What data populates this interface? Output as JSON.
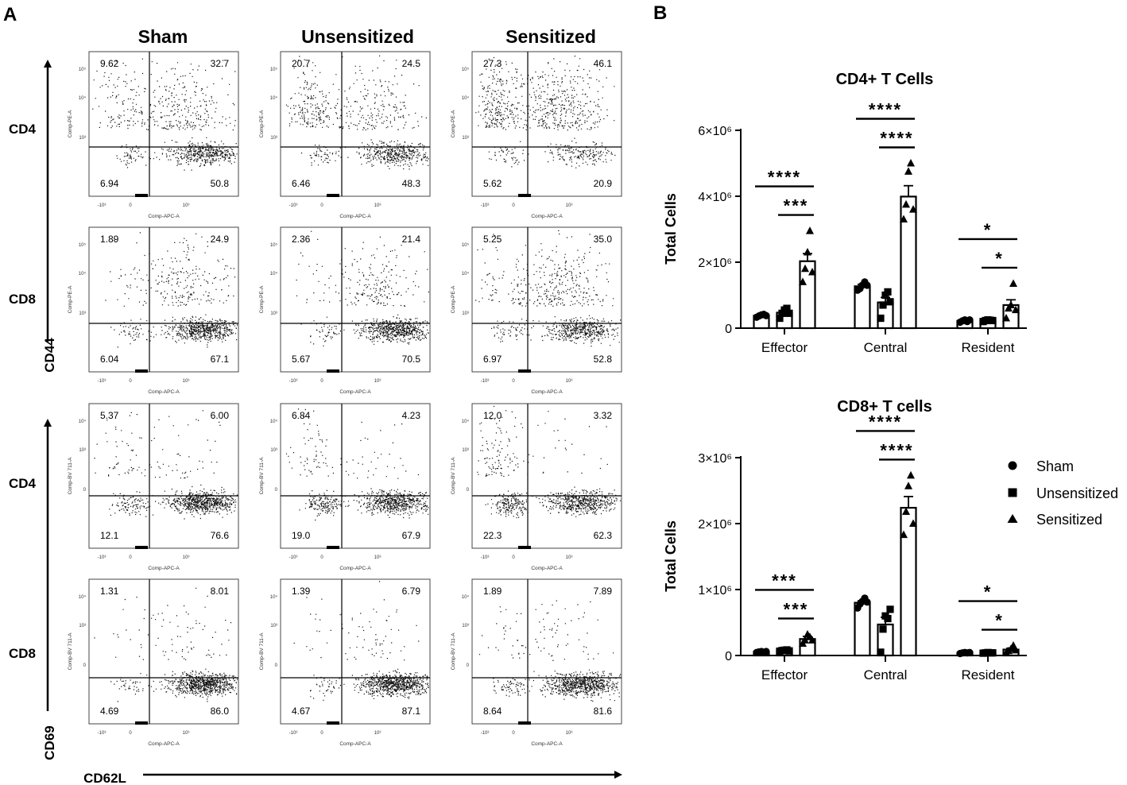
{
  "panel_a": {
    "label": "A",
    "columns": [
      "Sham",
      "Unsensitized",
      "Sensitized"
    ],
    "row_labels": [
      "CD4",
      "CD8",
      "CD4",
      "CD8"
    ],
    "axis_y_top": "CD44",
    "axis_y_bottom": "CD69",
    "axis_x": "CD62L",
    "x_param": "Comp-APC-A",
    "y_params": [
      "Comp-PE-A",
      "Comp-PE-A",
      "Comp-BV 711-A",
      "Comp-BV 711-A"
    ],
    "tick_neg": "-10³",
    "tick_zero": "0",
    "tick_3": "10³",
    "tick_4": "10⁴",
    "tick_5": "10⁵",
    "quadrants": [
      [
        [
          9.62,
          32.7,
          6.94,
          50.8
        ],
        [
          20.7,
          24.5,
          6.46,
          48.3
        ],
        [
          27.3,
          46.1,
          5.62,
          20.9
        ]
      ],
      [
        [
          1.89,
          24.9,
          6.04,
          67.1
        ],
        [
          2.36,
          21.4,
          5.67,
          70.5
        ],
        [
          5.25,
          35.0,
          6.97,
          52.8
        ]
      ],
      [
        [
          5.37,
          6.0,
          12.1,
          76.6
        ],
        [
          6.84,
          4.23,
          19.0,
          67.9
        ],
        [
          12.0,
          3.32,
          22.3,
          62.3
        ]
      ],
      [
        [
          1.31,
          8.01,
          4.69,
          86.0
        ],
        [
          1.39,
          6.79,
          4.67,
          87.1
        ],
        [
          1.89,
          7.89,
          8.64,
          81.6
        ]
      ]
    ],
    "quadrant_labels": [
      [
        [
          "9.62",
          "32.7",
          "6.94",
          "50.8"
        ],
        [
          "20.7",
          "24.5",
          "6.46",
          "48.3"
        ],
        [
          "27.3",
          "46.1",
          "5.62",
          "20.9"
        ]
      ],
      [
        [
          "1.89",
          "24.9",
          "6.04",
          "67.1"
        ],
        [
          "2.36",
          "21.4",
          "5.67",
          "70.5"
        ],
        [
          "5.25",
          "35.0",
          "6.97",
          "52.8"
        ]
      ],
      [
        [
          "5.37",
          "6.00",
          "12.1",
          "76.6"
        ],
        [
          "6.84",
          "4.23",
          "19.0",
          "67.9"
        ],
        [
          "12.0",
          "3.32",
          "22.3",
          "62.3"
        ]
      ],
      [
        [
          "1.31",
          "8.01",
          "4.69",
          "86.0"
        ],
        [
          "1.39",
          "6.79",
          "4.67",
          "87.1"
        ],
        [
          "1.89",
          "7.89",
          "8.64",
          "81.6"
        ]
      ]
    ]
  },
  "panel_b": {
    "label": "B"
  },
  "legend": [
    {
      "name": "Sham",
      "marker": "circle"
    },
    {
      "name": "Unsensitized",
      "marker": "square"
    },
    {
      "name": "Sensitized",
      "marker": "triangle"
    }
  ],
  "chart_data": [
    {
      "type": "bar",
      "title": "CD4+ T Cells",
      "ylabel": "Total Cells",
      "ylim": [
        0,
        6000000
      ],
      "yticks": [
        0,
        2000000,
        4000000,
        6000000
      ],
      "ytick_labels": [
        "0",
        "2×10⁶",
        "4×10⁶",
        "6×10⁶"
      ],
      "categories": [
        "Effector",
        "Central",
        "Resident"
      ],
      "series": [
        {
          "name": "Sham",
          "values": [
            380000,
            1270000,
            220000
          ],
          "error": [
            20000,
            60000,
            20000
          ],
          "points": [
            [
              330000,
              370000,
              400000,
              420000,
              380000
            ],
            [
              1150000,
              1200000,
              1300000,
              1400000,
              1300000
            ],
            [
              180000,
              220000,
              250000,
              200000,
              250000
            ]
          ]
        },
        {
          "name": "Unsensitized",
          "values": [
            470000,
            780000,
            230000
          ],
          "error": [
            60000,
            150000,
            20000
          ],
          "points": [
            [
              300000,
              450000,
              550000,
              600000,
              450000
            ],
            [
              300000,
              700000,
              1000000,
              1100000,
              800000
            ],
            [
              200000,
              230000,
              250000,
              240000,
              230000
            ]
          ]
        },
        {
          "name": "Sensitized",
          "values": [
            2030000,
            3990000,
            700000
          ],
          "error": [
            230000,
            330000,
            160000
          ],
          "points": [
            [
              1400000,
              1800000,
              2300000,
              2950000,
              1700000
            ],
            [
              3300000,
              3750000,
              4750000,
              5000000,
              3600000
            ],
            [
              300000,
              600000,
              700000,
              1350000,
              550000
            ]
          ]
        }
      ],
      "significance": [
        {
          "category": "Effector",
          "pair": [
            "Sham",
            "Sensitized"
          ],
          "label": "****"
        },
        {
          "category": "Effector",
          "pair": [
            "Unsensitized",
            "Sensitized"
          ],
          "label": "***"
        },
        {
          "category": "Central",
          "pair": [
            "Sham",
            "Sensitized"
          ],
          "label": "****"
        },
        {
          "category": "Central",
          "pair": [
            "Unsensitized",
            "Sensitized"
          ],
          "label": "****"
        },
        {
          "category": "Resident",
          "pair": [
            "Sham",
            "Sensitized"
          ],
          "label": "*"
        },
        {
          "category": "Resident",
          "pair": [
            "Unsensitized",
            "Sensitized"
          ],
          "label": "*"
        }
      ]
    },
    {
      "type": "bar",
      "title": "CD8+  T cells",
      "ylabel": "Total Cells",
      "ylim": [
        0,
        3000000
      ],
      "yticks": [
        0,
        1000000,
        2000000,
        3000000
      ],
      "ytick_labels": [
        "0",
        "1×10⁶",
        "2×10⁶",
        "3×10⁶"
      ],
      "categories": [
        "Effector",
        "Central",
        "Resident"
      ],
      "series": [
        {
          "name": "Sham",
          "values": [
            55000,
            800000,
            40000
          ],
          "error": [
            8000,
            30000,
            5000
          ],
          "points": [
            [
              45000,
              55000,
              60000,
              50000,
              60000
            ],
            [
              720000,
              780000,
              820000,
              870000,
              810000
            ],
            [
              30000,
              40000,
              45000,
              40000,
              45000
            ]
          ]
        },
        {
          "name": "Unsensitized",
          "values": [
            75000,
            470000,
            40000
          ],
          "error": [
            8000,
            110000,
            5000
          ],
          "points": [
            [
              65000,
              75000,
              80000,
              85000,
              70000
            ],
            [
              50000,
              400000,
              600000,
              560000,
              700000
            ],
            [
              35000,
              40000,
              45000,
              40000,
              40000
            ]
          ]
        },
        {
          "name": "Sensitized",
          "values": [
            250000,
            2240000,
            90000
          ],
          "error": [
            40000,
            170000,
            20000
          ],
          "points": [
            [
              180000,
              230000,
              320000,
              280000,
              230000
            ],
            [
              1830000,
              2180000,
              2570000,
              2730000,
              2000000
            ],
            [
              40000,
              70000,
              100000,
              150000,
              80000
            ]
          ]
        }
      ],
      "significance": [
        {
          "category": "Effector",
          "pair": [
            "Sham",
            "Sensitized"
          ],
          "label": "***"
        },
        {
          "category": "Effector",
          "pair": [
            "Unsensitized",
            "Sensitized"
          ],
          "label": "***"
        },
        {
          "category": "Central",
          "pair": [
            "Sham",
            "Sensitized"
          ],
          "label": "****"
        },
        {
          "category": "Central",
          "pair": [
            "Unsensitized",
            "Sensitized"
          ],
          "label": "****"
        },
        {
          "category": "Resident",
          "pair": [
            "Sham",
            "Sensitized"
          ],
          "label": "*"
        },
        {
          "category": "Resident",
          "pair": [
            "Unsensitized",
            "Sensitized"
          ],
          "label": "*"
        }
      ]
    }
  ]
}
